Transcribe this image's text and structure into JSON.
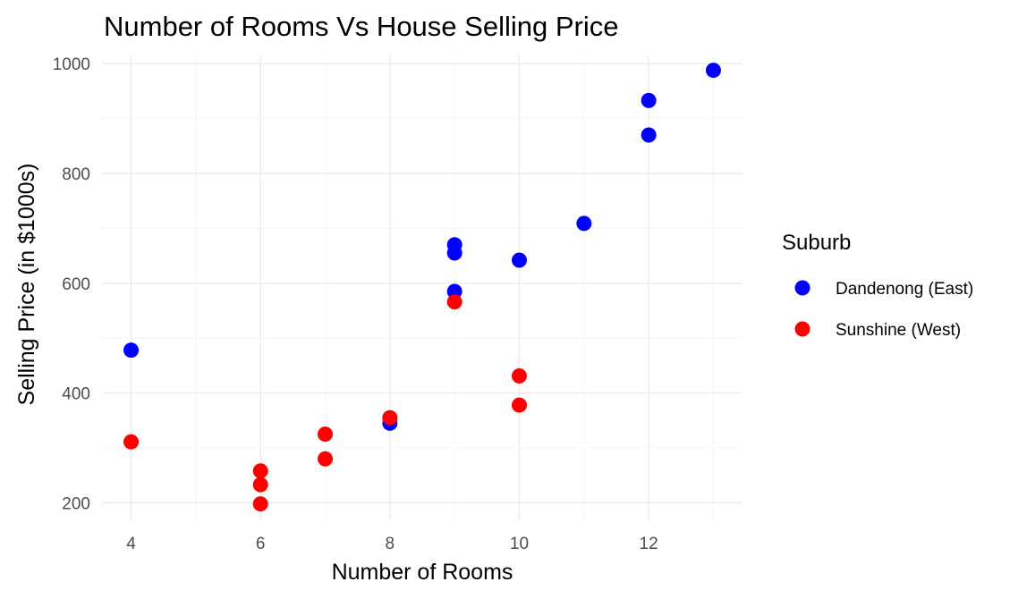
{
  "chart_data": {
    "type": "scatter",
    "title": "Number of Rooms Vs House Selling Price",
    "xlabel": "Number of Rooms",
    "ylabel": "Selling Price (in $1000s)",
    "xlim": [
      3.55,
      13.45
    ],
    "ylim": [
      168,
      1015
    ],
    "x_ticks": [
      4,
      6,
      8,
      10,
      12
    ],
    "y_ticks": [
      200,
      400,
      600,
      800,
      1000
    ],
    "x_tick_labels": [
      "4",
      "6",
      "8",
      "10",
      "12"
    ],
    "y_tick_labels": [
      "200",
      "400",
      "600",
      "800",
      "1000"
    ],
    "x_minor_ticks": [
      5,
      7,
      9,
      11,
      13
    ],
    "y_minor_ticks": [
      300,
      500,
      700,
      900
    ],
    "grid": true,
    "legend": {
      "title": "Suburb",
      "placement": "right"
    },
    "series": [
      {
        "name": "Dandenong (East)",
        "color": "#0000ff",
        "points": [
          {
            "x": 4,
            "y": 478
          },
          {
            "x": 8,
            "y": 345
          },
          {
            "x": 9,
            "y": 670
          },
          {
            "x": 9,
            "y": 655
          },
          {
            "x": 9,
            "y": 585
          },
          {
            "x": 10,
            "y": 642
          },
          {
            "x": 11,
            "y": 709
          },
          {
            "x": 12,
            "y": 933
          },
          {
            "x": 12,
            "y": 870
          },
          {
            "x": 13,
            "y": 988
          }
        ]
      },
      {
        "name": "Sunshine (West)",
        "color": "#ff0000",
        "points": [
          {
            "x": 4,
            "y": 311
          },
          {
            "x": 6,
            "y": 258
          },
          {
            "x": 6,
            "y": 233
          },
          {
            "x": 6,
            "y": 198
          },
          {
            "x": 7,
            "y": 325
          },
          {
            "x": 7,
            "y": 280
          },
          {
            "x": 8,
            "y": 355
          },
          {
            "x": 9,
            "y": 566
          },
          {
            "x": 10,
            "y": 431
          },
          {
            "x": 10,
            "y": 378
          }
        ]
      }
    ]
  }
}
